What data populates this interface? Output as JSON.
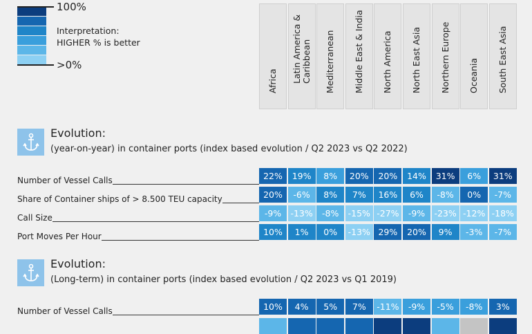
{
  "legend": {
    "top": "100%",
    "bottom": ">0%",
    "interpretation_title": "Interpretation:",
    "interpretation_text": "HIGHER % is better",
    "scale_colors": [
      "#0c3d7e",
      "#1566b0",
      "#1f85c8",
      "#3a9fdc",
      "#5cb6e8",
      "#8dd0f3"
    ]
  },
  "level_colors": {
    "1": "#8dd0f3",
    "2": "#5cb6e8",
    "3": "#3a9fdc",
    "4": "#1f85c8",
    "5": "#1566b0",
    "6": "#0c3d7e",
    "0": "#c4c4c4"
  },
  "regions": [
    "Africa",
    "Latin America &\nCaribbean",
    "Mediterranean",
    "Middle East & India",
    "North America",
    "North East Asia",
    "Northern Europe",
    "Oceania",
    "South East Asia"
  ],
  "sections": [
    {
      "icon": "anchor-icon",
      "title": "Evolution:",
      "subtitle": "(year-on-year) in container ports (index based evolution / Q2 2023 vs Q2 2022)",
      "rows": [
        {
          "label": "Number of Vessel Calls",
          "values": [
            "22%",
            "19%",
            "8%",
            "20%",
            "20%",
            "14%",
            "31%",
            "6%",
            "31%"
          ],
          "levels": [
            5,
            4,
            3,
            5,
            5,
            4,
            6,
            3,
            6
          ]
        },
        {
          "label": "Share of Container ships of > 8.500 TEU  capacity",
          "values": [
            "20%",
            "-6%",
            "8%",
            "7%",
            "16%",
            "6%",
            "-8%",
            "0%",
            "-7%"
          ],
          "levels": [
            5,
            2,
            4,
            4,
            4,
            4,
            2,
            5,
            2
          ]
        },
        {
          "label": "Call Size",
          "values": [
            "-9%",
            "-13%",
            "-8%",
            "-15%",
            "-27%",
            "-9%",
            "-23%",
            "-12%",
            "-18%"
          ],
          "levels": [
            2,
            1,
            2,
            1,
            1,
            2,
            1,
            1,
            1
          ]
        },
        {
          "label": "Port Moves Per Hour",
          "values": [
            "10%",
            "1%",
            "0%",
            "-13%",
            "29%",
            "20%",
            "9%",
            "-3%",
            "-7%"
          ],
          "levels": [
            4,
            4,
            4,
            1,
            5,
            5,
            4,
            2,
            2
          ]
        }
      ]
    },
    {
      "icon": "anchor-icon",
      "title": "Evolution:",
      "subtitle": "(Long-term) in container ports (index based evolution / Q2 2023 vs Q1 2019)",
      "rows": [
        {
          "label": "Number of Vessel Calls",
          "values": [
            "10%",
            "4%",
            "5%",
            "7%",
            "-11%",
            "-9%",
            "-5%",
            "-8%",
            "3%"
          ],
          "levels": [
            5,
            5,
            5,
            5,
            2,
            3,
            3,
            3,
            5
          ]
        },
        {
          "label": "",
          "values": [
            "",
            "",
            "",
            "",
            "",
            "",
            "",
            "",
            ""
          ],
          "levels": [
            2,
            5,
            5,
            5,
            6,
            6,
            2,
            0,
            6
          ]
        }
      ]
    }
  ]
}
